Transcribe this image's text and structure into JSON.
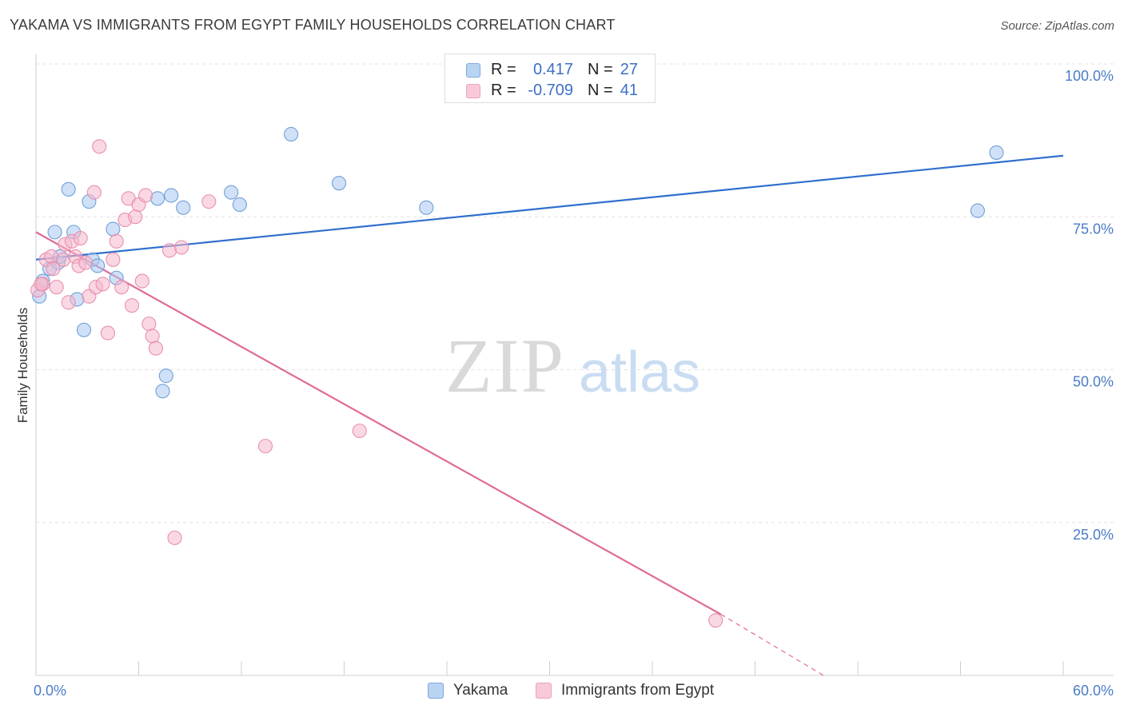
{
  "header": {
    "title": "YAKAMA VS IMMIGRANTS FROM EGYPT FAMILY HOUSEHOLDS CORRELATION CHART",
    "source": "Source: ZipAtlas.com"
  },
  "watermark": {
    "zip": "ZIP",
    "atlas": "atlas"
  },
  "legend": {
    "r_label": "R =",
    "n_label": "N =",
    "rows": [
      {
        "name": "Yakama",
        "r": "0.417",
        "n": "27"
      },
      {
        "name": "Immigrants from Egypt",
        "r": "-0.709",
        "n": "41"
      }
    ]
  },
  "colors": {
    "yakama_fill": "#a9c8f0",
    "yakama_stroke": "#6f9fd8",
    "yakama_line": "#2f6fce",
    "egypt_fill": "#f6b8cc",
    "egypt_stroke": "#e88fae",
    "egypt_line": "#e06a97",
    "tick_text": "#4a7cc7",
    "grid": "#e2e2e2"
  },
  "chart_data": {
    "type": "scatter",
    "title": "YAKAMA VS IMMIGRANTS FROM EGYPT FAMILY HOUSEHOLDS CORRELATION CHART",
    "xlabel": "",
    "ylabel": "Family Households",
    "xlim": [
      0,
      60
    ],
    "ylim": [
      0,
      100
    ],
    "x_tick_labels": [
      "0.0%",
      "60.0%"
    ],
    "y_ticks": [
      25,
      50,
      75,
      100
    ],
    "y_tick_labels": [
      "25.0%",
      "50.0%",
      "75.0%",
      "100.0%"
    ],
    "grid": true,
    "legend_position": "top-center",
    "series": [
      {
        "name": "Yakama",
        "points": [
          [
            0.2,
            62.0
          ],
          [
            0.4,
            64.5
          ],
          [
            0.8,
            66.5
          ],
          [
            1.1,
            72.5
          ],
          [
            1.3,
            67.5
          ],
          [
            1.4,
            68.5
          ],
          [
            1.9,
            79.5
          ],
          [
            2.2,
            72.5
          ],
          [
            2.4,
            61.5
          ],
          [
            2.8,
            56.5
          ],
          [
            3.1,
            77.5
          ],
          [
            3.3,
            68.0
          ],
          [
            3.6,
            67.0
          ],
          [
            4.5,
            73.0
          ],
          [
            4.7,
            65.0
          ],
          [
            7.1,
            78.0
          ],
          [
            7.4,
            46.5
          ],
          [
            7.6,
            49.0
          ],
          [
            7.9,
            78.5
          ],
          [
            8.6,
            76.5
          ],
          [
            11.4,
            79.0
          ],
          [
            11.9,
            77.0
          ],
          [
            14.9,
            88.5
          ],
          [
            17.7,
            80.5
          ],
          [
            22.8,
            76.5
          ],
          [
            55.0,
            76.0
          ],
          [
            56.1,
            85.5
          ]
        ],
        "trend": {
          "x": [
            0,
            60
          ],
          "y": [
            68.0,
            85.0
          ]
        }
      },
      {
        "name": "Immigrants from Egypt",
        "points": [
          [
            0.1,
            63.0
          ],
          [
            0.4,
            64.0
          ],
          [
            0.6,
            68.0
          ],
          [
            0.9,
            68.5
          ],
          [
            1.0,
            66.5
          ],
          [
            1.2,
            63.5
          ],
          [
            1.6,
            68.0
          ],
          [
            1.7,
            70.5
          ],
          [
            1.9,
            61.0
          ],
          [
            2.1,
            71.0
          ],
          [
            2.3,
            68.5
          ],
          [
            2.5,
            67.0
          ],
          [
            2.6,
            71.5
          ],
          [
            2.9,
            67.5
          ],
          [
            3.1,
            62.0
          ],
          [
            3.4,
            79.0
          ],
          [
            3.5,
            63.5
          ],
          [
            3.7,
            86.5
          ],
          [
            3.9,
            64.0
          ],
          [
            4.2,
            56.0
          ],
          [
            4.5,
            68.0
          ],
          [
            4.7,
            71.0
          ],
          [
            5.0,
            63.5
          ],
          [
            5.2,
            74.5
          ],
          [
            5.4,
            78.0
          ],
          [
            5.6,
            60.5
          ],
          [
            5.8,
            75.0
          ],
          [
            6.0,
            77.0
          ],
          [
            6.2,
            64.5
          ],
          [
            6.4,
            78.5
          ],
          [
            6.6,
            57.5
          ],
          [
            6.8,
            55.5
          ],
          [
            7.0,
            53.5
          ],
          [
            7.8,
            69.5
          ],
          [
            8.1,
            22.5
          ],
          [
            8.5,
            70.0
          ],
          [
            10.1,
            77.5
          ],
          [
            13.4,
            37.5
          ],
          [
            18.9,
            40.0
          ],
          [
            39.7,
            9.0
          ],
          [
            0.3,
            64.0
          ]
        ],
        "trend": {
          "x": [
            0,
            40
          ],
          "y": [
            72.5,
            10.0
          ],
          "dashed_x": [
            40,
            46
          ],
          "dashed_y": [
            10.0,
            0.0
          ]
        }
      }
    ]
  }
}
